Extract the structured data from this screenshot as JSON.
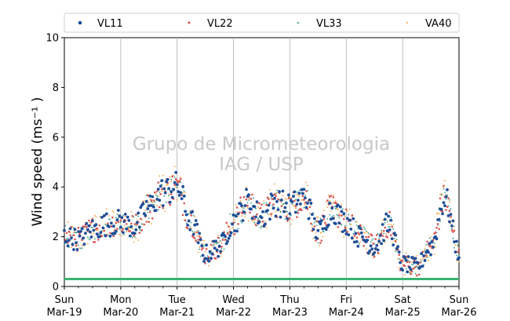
{
  "chart_data": {
    "type": "scatter",
    "ylabel": "Wind speed (ms⁻¹ )",
    "ylim": [
      0,
      10
    ],
    "yticks": [
      0,
      2,
      4,
      6,
      8,
      10
    ],
    "xlim": [
      "2017-03-19",
      "2017-03-26"
    ],
    "xticks": [
      {
        "day": "Sun",
        "date": "Mar-19"
      },
      {
        "day": "Mon",
        "date": "Mar-20"
      },
      {
        "day": "Tue",
        "date": "Mar-21"
      },
      {
        "day": "Wed",
        "date": "Mar-22"
      },
      {
        "day": "Thu",
        "date": "Mar-23"
      },
      {
        "day": "Fri",
        "date": "Mar-24"
      },
      {
        "day": "Sat",
        "date": "Mar-25"
      },
      {
        "day": "Sun",
        "date": "Mar-26"
      }
    ],
    "grid": "vertical lines at day ticks",
    "legend_position": "top",
    "threshold_line": {
      "value": 0.3,
      "color": "#3cb371"
    },
    "watermark": [
      "Grupo de Micrometeorologia",
      "IAG / USP"
    ],
    "profile_hours": [
      0,
      6,
      12,
      18,
      24,
      30,
      36,
      42,
      48,
      54,
      60,
      66,
      72,
      78,
      84,
      90,
      96,
      102,
      108,
      114,
      120,
      126,
      132,
      138,
      144,
      150,
      156,
      162,
      168
    ],
    "profile_values": [
      2.0,
      1.9,
      2.3,
      2.5,
      2.6,
      2.4,
      3.2,
      3.8,
      4.0,
      2.6,
      1.3,
      1.6,
      2.6,
      3.4,
      2.8,
      3.4,
      3.2,
      3.6,
      2.2,
      3.1,
      2.6,
      2.0,
      1.6,
      2.5,
      0.9,
      0.8,
      1.6,
      3.5,
      1.4
    ],
    "series": [
      {
        "name": "VL11",
        "color": "#1f4e99",
        "marker": "dot"
      },
      {
        "name": "VL22",
        "color": "#d9534f",
        "marker": "small-dot"
      },
      {
        "name": "VL33",
        "color": "#2a9d8f",
        "marker": "tiny-dot"
      },
      {
        "name": "VA40",
        "color": "#f4a340",
        "marker": "tiny-dot"
      }
    ]
  }
}
